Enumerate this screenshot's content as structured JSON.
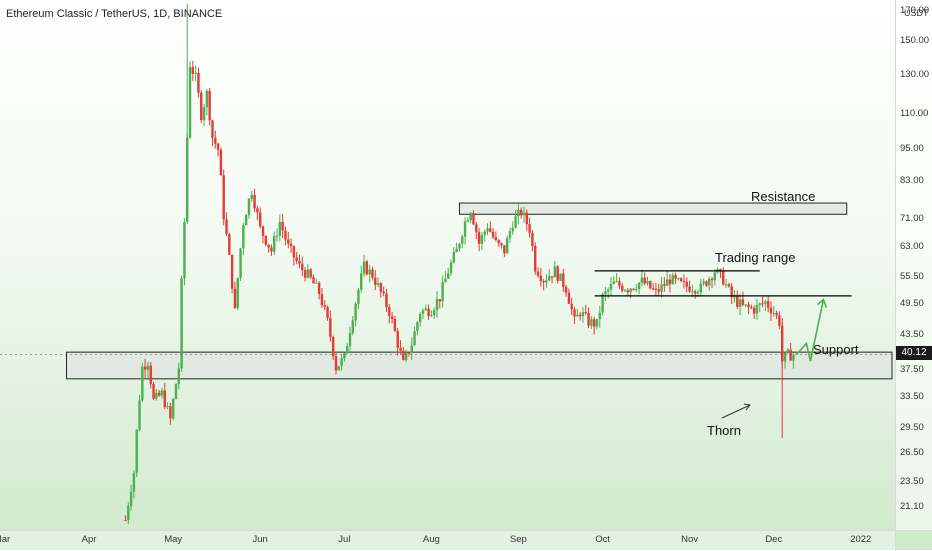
{
  "header": {
    "title": "Ethereum Classic / TetherUS, 1D, BINANCE",
    "unit": "USDT"
  },
  "price_badge": "40.12",
  "annotations": {
    "resistance": "Resistance",
    "trading_range": "Trading range",
    "support": "Support",
    "thorn": "Thorn"
  },
  "colors": {
    "up": "#4caf50",
    "down": "#e53935",
    "zone_fill": "#dfe5df",
    "zone_stroke": "#222222",
    "arrow": "#4caf50"
  },
  "chart_data": {
    "type": "candlestick",
    "title": "Ethereum Classic / TetherUS, 1D, BINANCE",
    "scale": "log",
    "ylim": [
      19.5,
      175
    ],
    "y_ticks": [
      "170.00",
      "150.00",
      "130.00",
      "110.00",
      "95.00",
      "83.00",
      "71.00",
      "63.00",
      "55.50",
      "49.50",
      "43.50",
      "37.50",
      "33.50",
      "29.50",
      "26.50",
      "23.50",
      "21.10"
    ],
    "x_ticks": [
      "Mar",
      "Apr",
      "May",
      "Jun",
      "Jul",
      "Aug",
      "Sep",
      "Oct",
      "Nov",
      "Dec",
      "2022"
    ],
    "x_range": [
      "2021-03-01",
      "2022-01-05"
    ],
    "last_price": 40.12,
    "resistance_zone": [
      72.3,
      75.8
    ],
    "support_zone": [
      36.2,
      40.5
    ],
    "trading_range": [
      51.3,
      57.0
    ],
    "path": [
      [
        "2021-04-14",
        20.0
      ],
      [
        "2021-04-17",
        24.5
      ],
      [
        "2021-04-20",
        38.0
      ],
      [
        "2021-04-22",
        39.0
      ],
      [
        "2021-04-24",
        33.0
      ],
      [
        "2021-04-27",
        34.0
      ],
      [
        "2021-04-30",
        30.5
      ],
      [
        "2021-05-03",
        38.0
      ],
      [
        "2021-05-05",
        70.0
      ],
      [
        "2021-05-06",
        100.0
      ],
      [
        "2021-05-07",
        136.0
      ],
      [
        "2021-05-09",
        128.0
      ],
      [
        "2021-05-11",
        110.0
      ],
      [
        "2021-05-13",
        120.0
      ],
      [
        "2021-05-15",
        100.0
      ],
      [
        "2021-05-17",
        95.0
      ],
      [
        "2021-05-19",
        72.0
      ],
      [
        "2021-05-21",
        60.0
      ],
      [
        "2021-05-23",
        48.0
      ],
      [
        "2021-05-26",
        70.0
      ],
      [
        "2021-05-29",
        80.0
      ],
      [
        "2021-06-01",
        68.0
      ],
      [
        "2021-06-05",
        62.0
      ],
      [
        "2021-06-08",
        70.0
      ],
      [
        "2021-06-11",
        63.0
      ],
      [
        "2021-06-15",
        58.0
      ],
      [
        "2021-06-18",
        56.0
      ],
      [
        "2021-06-22",
        52.0
      ],
      [
        "2021-06-25",
        46.0
      ],
      [
        "2021-06-28",
        38.0
      ],
      [
        "2021-07-01",
        39.5
      ],
      [
        "2021-07-05",
        50.0
      ],
      [
        "2021-07-08",
        58.0
      ],
      [
        "2021-07-11",
        56.0
      ],
      [
        "2021-07-14",
        52.0
      ],
      [
        "2021-07-17",
        48.0
      ],
      [
        "2021-07-20",
        42.0
      ],
      [
        "2021-07-22",
        38.5
      ],
      [
        "2021-07-25",
        42.0
      ],
      [
        "2021-07-28",
        48.0
      ],
      [
        "2021-08-01",
        48.5
      ],
      [
        "2021-08-04",
        51.0
      ],
      [
        "2021-08-07",
        57.0
      ],
      [
        "2021-08-10",
        62.0
      ],
      [
        "2021-08-13",
        70.0
      ],
      [
        "2021-08-15",
        74.0
      ],
      [
        "2021-08-18",
        64.0
      ],
      [
        "2021-08-21",
        69.0
      ],
      [
        "2021-08-24",
        64.0
      ],
      [
        "2021-08-27",
        62.0
      ],
      [
        "2021-08-30",
        70.0
      ],
      [
        "2021-09-02",
        73.0
      ],
      [
        "2021-09-05",
        68.0
      ],
      [
        "2021-09-07",
        58.0
      ],
      [
        "2021-09-10",
        55.0
      ],
      [
        "2021-09-14",
        57.0
      ],
      [
        "2021-09-18",
        53.0
      ],
      [
        "2021-09-21",
        46.0
      ],
      [
        "2021-09-23",
        48.0
      ],
      [
        "2021-09-26",
        46.0
      ],
      [
        "2021-09-29",
        45.5
      ],
      [
        "2021-10-01",
        51.0
      ],
      [
        "2021-10-05",
        54.0
      ],
      [
        "2021-10-10",
        53.0
      ],
      [
        "2021-10-15",
        54.5
      ],
      [
        "2021-10-20",
        52.0
      ],
      [
        "2021-10-25",
        55.0
      ],
      [
        "2021-10-30",
        53.5
      ],
      [
        "2021-11-05",
        53.0
      ],
      [
        "2021-11-10",
        57.0
      ],
      [
        "2021-11-13",
        55.0
      ],
      [
        "2021-11-16",
        51.0
      ],
      [
        "2021-11-20",
        49.0
      ],
      [
        "2021-11-24",
        48.5
      ],
      [
        "2021-11-28",
        50.0
      ],
      [
        "2021-12-01",
        48.0
      ],
      [
        "2021-12-03",
        46.0
      ],
      [
        "2021-12-04",
        39.0
      ],
      [
        "2021-12-06",
        40.0
      ],
      [
        "2021-12-08",
        40.12
      ]
    ]
  }
}
